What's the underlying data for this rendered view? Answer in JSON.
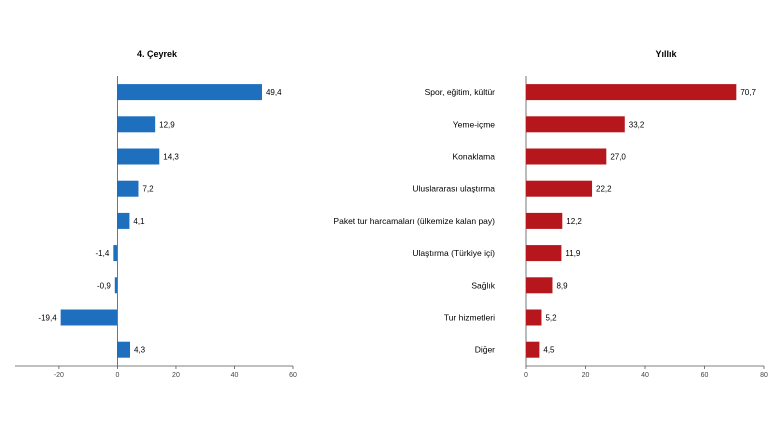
{
  "chart_data": [
    {
      "type": "bar",
      "orientation": "horizontal",
      "title": "4. Çeyrek",
      "categories": [
        "Spor, eğitim, kültür",
        "Yeme-içme",
        "Konaklama",
        "Uluslararası ulaştırma",
        "Paket tur harcamaları (ülkemize kalan pay)",
        "Ulaştırma (Türkiye içi)",
        "Sağlık",
        "Tur hizmetleri",
        "Diğer"
      ],
      "values": [
        49.4,
        12.9,
        14.3,
        7.2,
        4.1,
        -1.4,
        -0.9,
        -19.4,
        4.3
      ],
      "value_labels": [
        "49,4",
        "12,9",
        "14,3",
        "7,2",
        "4,1",
        "-1,4",
        "-0,9",
        "-19,4",
        "4,3"
      ],
      "xlim": [
        -35,
        60
      ],
      "ticks": [
        -20,
        0,
        20,
        40,
        60
      ],
      "tick_labels": [
        "-20",
        "0",
        "20",
        "40",
        "60"
      ],
      "color": "#1f6fbf"
    },
    {
      "type": "bar",
      "orientation": "horizontal",
      "title": "Yıllık",
      "categories": [
        "Spor, eğitim, kültür",
        "Yeme-içme",
        "Konaklama",
        "Uluslararası ulaştırma",
        "Paket tur harcamaları (ülkemize kalan pay)",
        "Ulaştırma (Türkiye içi)",
        "Sağlık",
        "Tur hizmetleri",
        "Diğer"
      ],
      "values": [
        70.7,
        33.2,
        27.0,
        22.2,
        12.2,
        11.9,
        8.9,
        5.2,
        4.5
      ],
      "value_labels": [
        "70,7",
        "33,2",
        "27,0",
        "22,2",
        "12,2",
        "11,9",
        "8,9",
        "5,2",
        "4,5"
      ],
      "xlim": [
        0,
        80
      ],
      "ticks": [
        0,
        20,
        40,
        60,
        80
      ],
      "tick_labels": [
        "0",
        "20",
        "40",
        "60",
        "80"
      ],
      "color": "#b5171d"
    }
  ]
}
